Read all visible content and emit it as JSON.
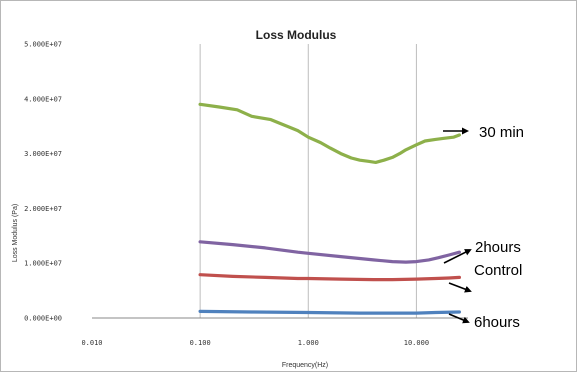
{
  "chart_data": {
    "type": "line",
    "title": "Loss Modulus",
    "xlabel": "Frequency(Hz)",
    "ylabel": "Loss Modulus (Pa)",
    "x_scale": "log",
    "xlim": [
      0.01,
      30
    ],
    "ylim": [
      0,
      50000000
    ],
    "x_ticks": [
      0.01,
      0.1,
      1,
      10
    ],
    "x_tick_labels": [
      "0.010",
      "0.100",
      "1.000",
      "10.000"
    ],
    "y_ticks": [
      0,
      10000000,
      20000000,
      30000000,
      40000000,
      50000000
    ],
    "y_tick_labels": [
      "0.000E+00",
      "1.000E+07",
      "2.000E+07",
      "3.000E+07",
      "4.000E+07",
      "5.000E+07"
    ],
    "grid": {
      "horizontal": false,
      "vertical": true
    },
    "legend": "none",
    "series": [
      {
        "color": "#8db04a",
        "x": [
          0.1,
          0.15,
          0.22,
          0.3,
          0.45,
          0.6,
          0.8,
          1.0,
          1.3,
          1.6,
          2.0,
          2.5,
          3.0,
          3.6,
          4.2,
          5.0,
          6.0,
          7.0,
          8.0,
          10.0,
          12.0,
          15.0,
          18.0,
          22.0,
          25.0
        ],
        "values": [
          39000000,
          38500000,
          38000000,
          36800000,
          36200000,
          35200000,
          34200000,
          33000000,
          32000000,
          31000000,
          30000000,
          29200000,
          28800000,
          28600000,
          28400000,
          28800000,
          29300000,
          30000000,
          30700000,
          31600000,
          32300000,
          32600000,
          32800000,
          33000000,
          33400000
        ]
      },
      {
        "color": "#8064a2",
        "x": [
          0.1,
          0.2,
          0.4,
          0.8,
          1.0,
          2.0,
          4.0,
          6.0,
          8.0,
          10.0,
          13.0,
          16.0,
          20.0,
          25.0
        ],
        "values": [
          13900000,
          13400000,
          12800000,
          12000000,
          11800000,
          11200000,
          10600000,
          10300000,
          10200000,
          10300000,
          10600000,
          11000000,
          11500000,
          12000000
        ]
      },
      {
        "color": "#c0504d",
        "x": [
          0.1,
          0.2,
          0.4,
          0.8,
          1.0,
          2.0,
          4.0,
          6.0,
          10.0,
          15.0,
          20.0,
          25.0
        ],
        "values": [
          7900000,
          7600000,
          7400000,
          7200000,
          7200000,
          7100000,
          7000000,
          7000000,
          7100000,
          7200000,
          7300000,
          7400000
        ]
      },
      {
        "color": "#4f81bd",
        "x": [
          0.1,
          0.3,
          1.0,
          3.0,
          6.0,
          10.0,
          15.0,
          25.0
        ],
        "values": [
          1200000,
          1100000,
          1000000,
          900000,
          900000,
          900000,
          1000000,
          1100000
        ]
      }
    ],
    "annotations": [
      {
        "text": "30 min"
      },
      {
        "text": "2hours"
      },
      {
        "text": "Control"
      },
      {
        "text": "6hours"
      }
    ]
  }
}
